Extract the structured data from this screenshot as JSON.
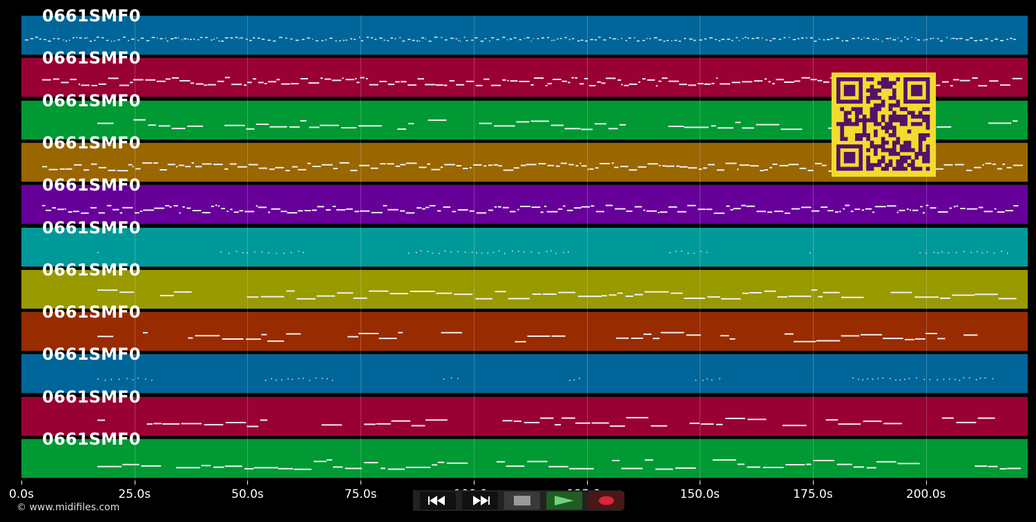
{
  "track_label": "0661SMF0",
  "tracks": [
    {
      "label": "0661SMF0",
      "color": "#006699"
    },
    {
      "label": "0661SMF0",
      "color": "#990033"
    },
    {
      "label": "0661SMF0",
      "color": "#009933"
    },
    {
      "label": "0661SMF0",
      "color": "#996600"
    },
    {
      "label": "0661SMF0",
      "color": "#660099"
    },
    {
      "label": "0661SMF0",
      "color": "#009999"
    },
    {
      "label": "0661SMF0",
      "color": "#999900"
    },
    {
      "label": "0661SMF0",
      "color": "#992b00"
    },
    {
      "label": "0661SMF0",
      "color": "#006699"
    },
    {
      "label": "0661SMF0",
      "color": "#990033"
    },
    {
      "label": "0661SMF0",
      "color": "#009933"
    }
  ],
  "time_axis": {
    "ticks": [
      "0.0s",
      "25.0s",
      "50.0s",
      "75.0s",
      "100.0s",
      "125.0s",
      "150.0s",
      "175.0s",
      "200.0s"
    ],
    "seconds": [
      0,
      25,
      50,
      75,
      100,
      125,
      150,
      175,
      200
    ],
    "max_seconds": 222.5
  },
  "copyright": "© www.midifiles.com",
  "qr_colors": {
    "background": "#f2dc2e",
    "modules": "#55116a"
  },
  "controls": {
    "rewind_icon": "rewind-icon",
    "forward_icon": "fast-forward-icon",
    "stop_icon": "stop-icon",
    "play_icon": "play-icon",
    "record_icon": "record-icon"
  }
}
